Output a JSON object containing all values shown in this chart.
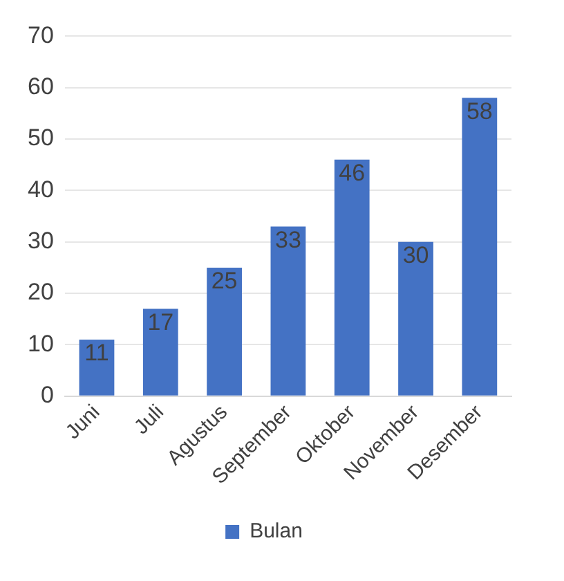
{
  "chart_data": {
    "type": "bar",
    "categories": [
      "Juni",
      "Juli",
      "Agustus",
      "September",
      "Oktober",
      "November",
      "Desember"
    ],
    "series": [
      {
        "name": "Bulan",
        "color": "#4472c4",
        "values": [
          11,
          17,
          25,
          33,
          46,
          30,
          58
        ]
      }
    ],
    "ylim": [
      0,
      70
    ],
    "yticks": [
      0,
      10,
      20,
      30,
      40,
      50,
      60,
      70
    ],
    "grid": "y",
    "legend": "bottom",
    "data_labels": true
  }
}
